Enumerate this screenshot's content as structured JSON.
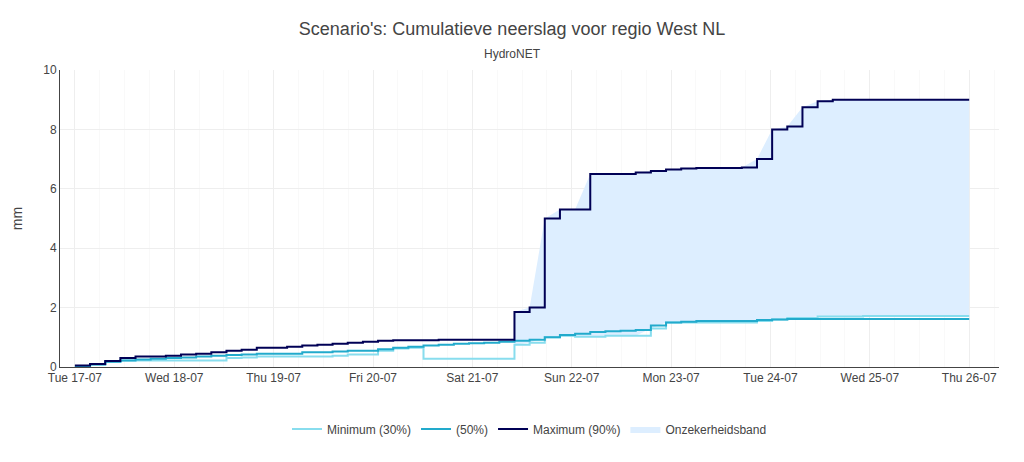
{
  "chart_data": {
    "type": "line",
    "title": "Scenario's: Cumulatieve neerslag voor regio West NL",
    "subtitle": "HydroNET",
    "y_label": "mm",
    "x": [
      0,
      0.152542,
      0.305085,
      0.457627,
      0.610169,
      0.762712,
      0.915254,
      1.067797,
      1.220339,
      1.372881,
      1.525424,
      1.677966,
      1.830508,
      1.983051,
      2.135593,
      2.288136,
      2.440678,
      2.59322,
      2.745763,
      2.898305,
      3.050847,
      3.20339,
      3.355932,
      3.508475,
      3.661017,
      3.813559,
      3.966102,
      4.118644,
      4.271186,
      4.423729,
      4.576271,
      4.728814,
      4.881356,
      5.033898,
      5.186441,
      5.338983,
      5.491525,
      5.644068,
      5.79661,
      5.949153,
      6.101695,
      6.254237,
      6.40678,
      6.559322,
      6.711864,
      6.864407,
      7.016949,
      7.169492,
      7.322034,
      7.474576,
      7.627119,
      7.779661,
      7.932203,
      8.084746,
      8.237288,
      8.389831,
      8.542373,
      8.694915,
      8.847458,
      9
    ],
    "xlim": [
      -0.15,
      9.3
    ],
    "xticks": [
      {
        "value": 0,
        "label": "Tue 17-07"
      },
      {
        "value": 1,
        "label": "Wed 18-07"
      },
      {
        "value": 2,
        "label": "Thu 19-07"
      },
      {
        "value": 3,
        "label": "Fri 20-07"
      },
      {
        "value": 4,
        "label": "Sat 21-07"
      },
      {
        "value": 5,
        "label": "Sun 22-07"
      },
      {
        "value": 6,
        "label": "Mon 23-07"
      },
      {
        "value": 7,
        "label": "Tue 24-07"
      },
      {
        "value": 8,
        "label": "Wed 25-07"
      },
      {
        "value": 9,
        "label": "Thu 26-07"
      }
    ],
    "ylim": [
      0,
      10
    ],
    "yticks": [
      0,
      2,
      4,
      6,
      8,
      10
    ],
    "grid": true,
    "legend": "bottom",
    "series": [
      {
        "name": "Minimum (30%)",
        "type": "step",
        "color": "#88ddee",
        "values": [
          0.02,
          0.08,
          0.18,
          0.22,
          0.22,
          0.22,
          0.22,
          0.22,
          0.22,
          0.22,
          0.3,
          0.32,
          0.35,
          0.35,
          0.35,
          0.35,
          0.35,
          0.38,
          0.42,
          0.42,
          0.55,
          0.62,
          0.65,
          0.28,
          0.28,
          0.28,
          0.28,
          0.28,
          0.28,
          0.75,
          0.82,
          1.0,
          1.05,
          1.02,
          1.02,
          1.05,
          1.05,
          1.05,
          1.3,
          1.5,
          1.5,
          1.5,
          1.5,
          1.5,
          1.5,
          1.55,
          1.6,
          1.65,
          1.65,
          1.7,
          1.7,
          1.7,
          1.72,
          1.72,
          1.72,
          1.72,
          1.72,
          1.72,
          1.72,
          1.72
        ]
      },
      {
        "name": "(50%)",
        "type": "step",
        "color": "#22aacc",
        "values": [
          0.02,
          0.08,
          0.18,
          0.22,
          0.25,
          0.28,
          0.3,
          0.32,
          0.35,
          0.38,
          0.4,
          0.42,
          0.45,
          0.45,
          0.45,
          0.5,
          0.5,
          0.52,
          0.55,
          0.55,
          0.6,
          0.65,
          0.68,
          0.72,
          0.75,
          0.78,
          0.8,
          0.82,
          0.85,
          0.88,
          0.92,
          1.0,
          1.08,
          1.12,
          1.18,
          1.2,
          1.22,
          1.25,
          1.4,
          1.5,
          1.52,
          1.55,
          1.55,
          1.55,
          1.55,
          1.58,
          1.6,
          1.62,
          1.62,
          1.62,
          1.62,
          1.62,
          1.62,
          1.62,
          1.62,
          1.62,
          1.62,
          1.62,
          1.62,
          1.62
        ]
      },
      {
        "name": "Maximum (90%)",
        "type": "step",
        "color": "#000055",
        "values": [
          0.05,
          0.1,
          0.2,
          0.3,
          0.35,
          0.35,
          0.38,
          0.42,
          0.45,
          0.5,
          0.55,
          0.58,
          0.65,
          0.65,
          0.68,
          0.72,
          0.75,
          0.78,
          0.82,
          0.85,
          0.88,
          0.9,
          0.9,
          0.9,
          0.92,
          0.92,
          0.92,
          0.92,
          0.92,
          1.85,
          2.0,
          5.0,
          5.3,
          5.3,
          6.5,
          6.5,
          6.5,
          6.55,
          6.6,
          6.65,
          6.68,
          6.7,
          6.7,
          6.7,
          6.72,
          7.0,
          8.0,
          8.1,
          8.75,
          8.95,
          9.0,
          9.0,
          9.0,
          9.0,
          9.0,
          9.0,
          9.0,
          9.0,
          9.0,
          9.0
        ]
      },
      {
        "name": "Onzekerheidsband",
        "type": "band",
        "color": "#ddeeff",
        "lower": [
          null,
          null,
          null,
          null,
          null,
          null,
          null,
          null,
          null,
          null,
          null,
          null,
          null,
          null,
          null,
          null,
          null,
          null,
          null,
          null,
          null,
          null,
          null,
          null,
          null,
          null,
          null,
          null,
          null,
          0.75,
          0.82,
          1.0,
          1.05,
          1.02,
          1.02,
          1.05,
          1.05,
          1.05,
          1.3,
          1.5,
          1.5,
          1.5,
          1.5,
          1.5,
          1.5,
          1.55,
          1.6,
          1.65,
          1.65,
          1.7,
          1.7,
          1.7,
          1.72,
          1.72,
          1.72,
          1.72,
          1.72,
          1.72,
          1.72,
          1.72
        ],
        "upper": [
          null,
          null,
          null,
          null,
          null,
          null,
          null,
          null,
          null,
          null,
          null,
          null,
          null,
          null,
          null,
          null,
          null,
          null,
          null,
          null,
          null,
          null,
          null,
          null,
          null,
          null,
          null,
          null,
          null,
          1.85,
          2.0,
          5.0,
          5.3,
          5.3,
          6.5,
          6.5,
          6.5,
          6.55,
          6.6,
          6.65,
          6.68,
          6.7,
          6.7,
          6.7,
          6.72,
          7.0,
          8.0,
          8.1,
          8.75,
          8.95,
          9.0,
          9.0,
          9.0,
          9.0,
          9.0,
          9.0,
          9.0,
          9.0,
          9.0,
          9.0
        ]
      }
    ]
  }
}
